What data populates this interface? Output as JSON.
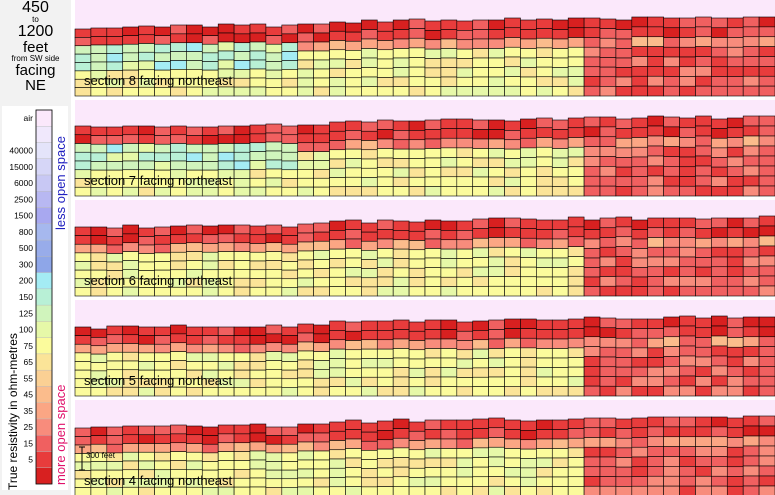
{
  "title": {
    "line1": "450",
    "line2": "to",
    "line3": "1200",
    "line4": "feet",
    "line5": "from SW side",
    "line6": "facing",
    "line7": "NE"
  },
  "legend": {
    "axis_title": "True resistivity in ohm-metres",
    "less_label": "less open space",
    "more_label": "more open space",
    "scale_bar_label": "300 feet",
    "entries": [
      {
        "label": "air",
        "color": "#fbe8fb"
      },
      {
        "label": "",
        "color": "#f0e8fc"
      },
      {
        "label": "40000",
        "color": "#e4e4fa"
      },
      {
        "label": "15000",
        "color": "#d6d6f7"
      },
      {
        "label": "6000",
        "color": "#c8c8f4"
      },
      {
        "label": "2500",
        "color": "#b8b8f2"
      },
      {
        "label": "1500",
        "color": "#a8a8f0"
      },
      {
        "label": "800",
        "color": "#a6b8ee"
      },
      {
        "label": "500",
        "color": "#98acea"
      },
      {
        "label": "300",
        "color": "#8ea6e8"
      },
      {
        "label": "200",
        "color": "#a4ecf4"
      },
      {
        "label": "150",
        "color": "#b8f0d6"
      },
      {
        "label": "125",
        "color": "#d0f4bc"
      },
      {
        "label": "100",
        "color": "#e6f8a8"
      },
      {
        "label": "75",
        "color": "#fbfb9c"
      },
      {
        "label": "65",
        "color": "#fbe498"
      },
      {
        "label": "55",
        "color": "#fbd094"
      },
      {
        "label": "45",
        "color": "#fbbc8c"
      },
      {
        "label": "35",
        "color": "#fba684"
      },
      {
        "label": "25",
        "color": "#f88c7c"
      },
      {
        "label": "15",
        "color": "#f06060"
      },
      {
        "label": "5",
        "color": "#e83c3c"
      },
      {
        "label": "",
        "color": "#d82020"
      }
    ]
  },
  "sections": [
    {
      "label": "section 8 facing northeast",
      "seed": 8
    },
    {
      "label": "section 7 facing northeast",
      "seed": 7
    },
    {
      "label": "section 6 facing northeast",
      "seed": 6
    },
    {
      "label": "section 5 facing northeast",
      "seed": 5
    },
    {
      "label": "section 4 facing northeast",
      "seed": 4
    }
  ],
  "colors": {
    "air": "#fbe8fb",
    "grid": "#000000",
    "less_label": "#2020c0",
    "more_label": "#e0106a"
  }
}
